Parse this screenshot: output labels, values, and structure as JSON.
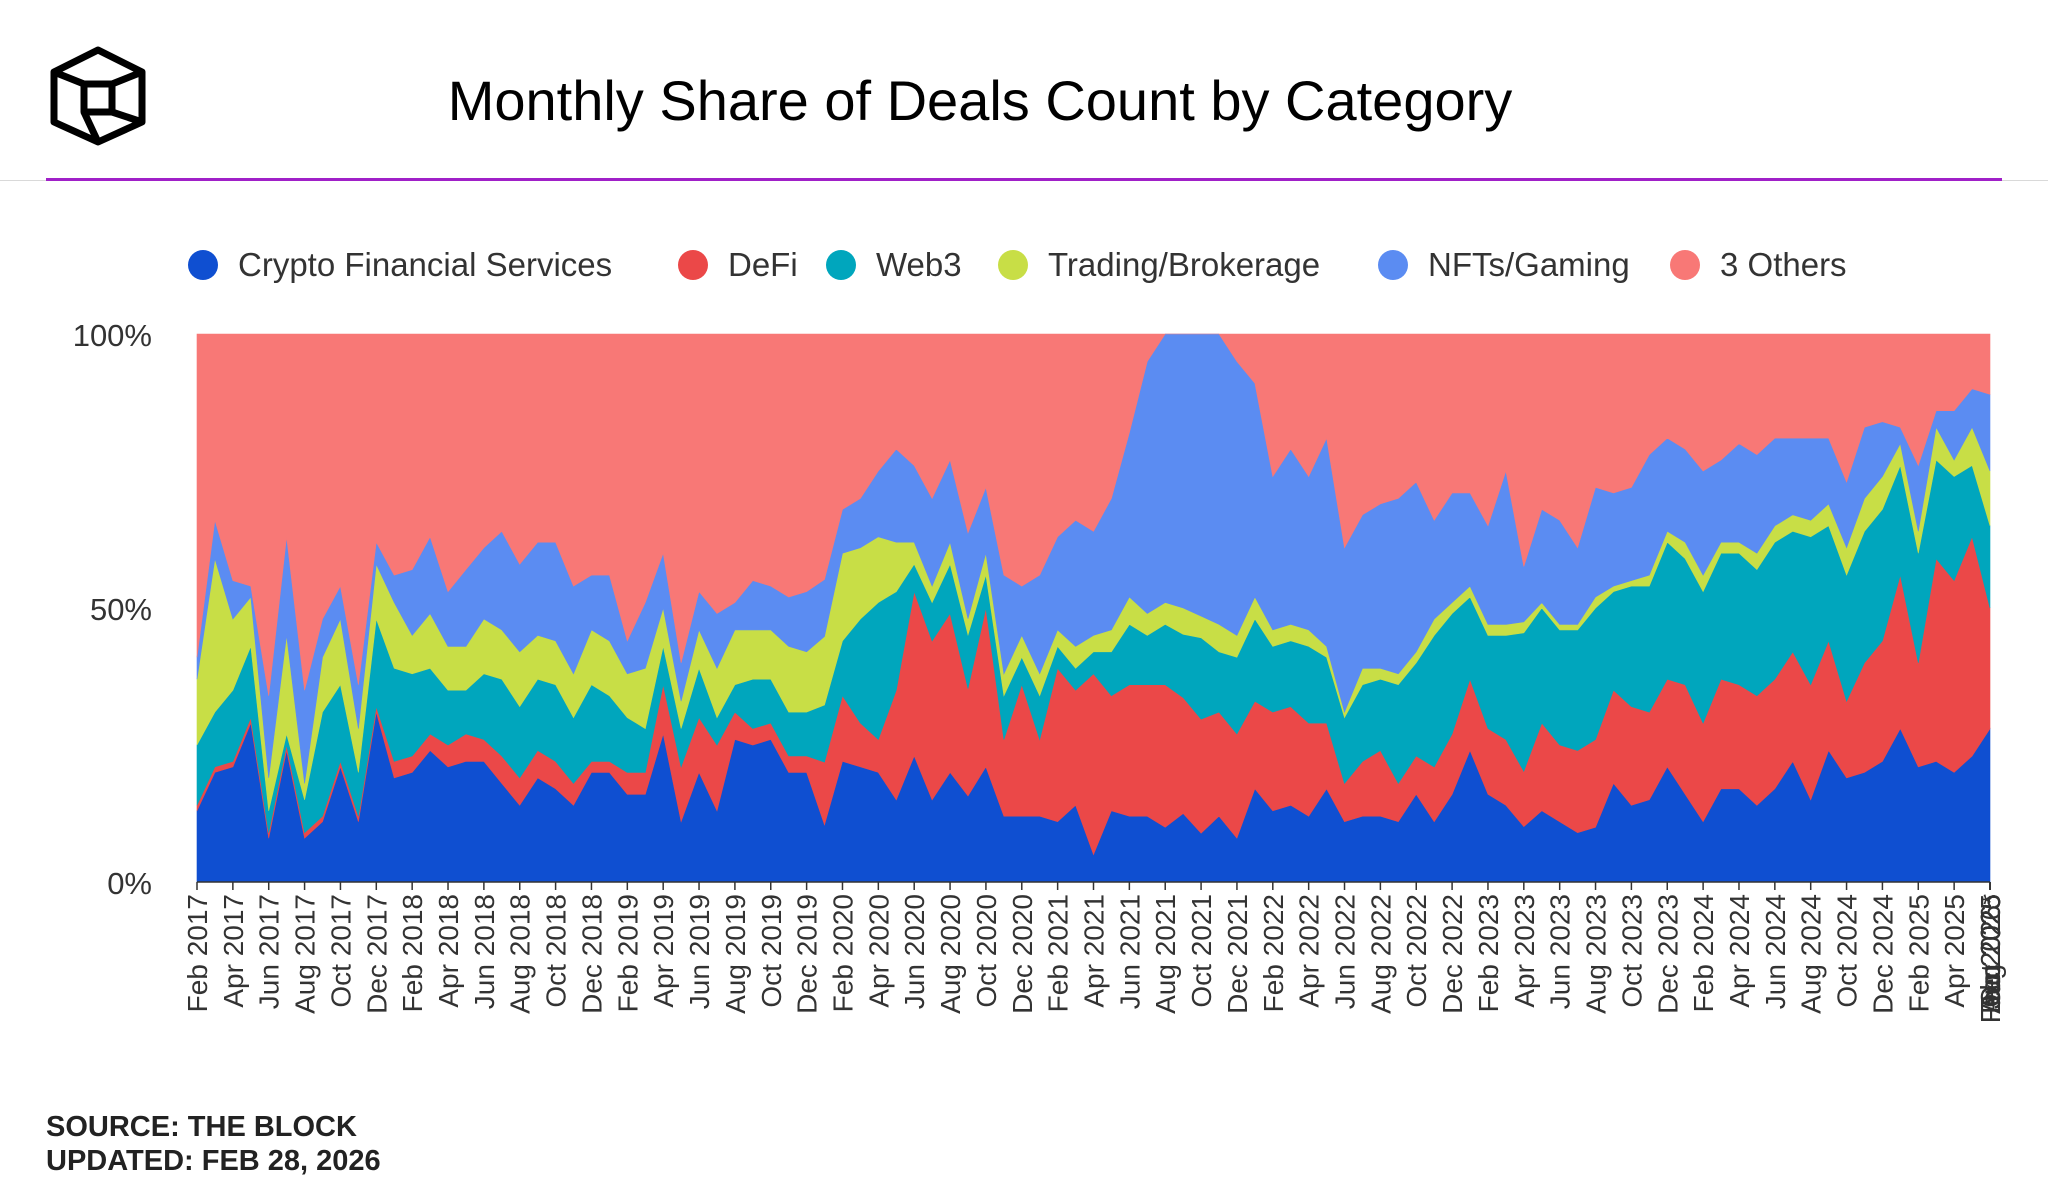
{
  "header": {
    "title": "Monthly Share of Deals Count by Category",
    "logo_icon": "cube-logo-icon",
    "accent_color": "#a020c8"
  },
  "footer": {
    "source": "SOURCE: THE BLOCK",
    "updated": "UPDATED: FEB 28, 2026"
  },
  "chart_data": {
    "type": "area",
    "stacked": true,
    "normalized": true,
    "title": "Monthly Share of Deals Count by Category",
    "xlabel": "",
    "ylabel": "",
    "ylim": [
      0,
      100
    ],
    "y_ticks": [
      "0%",
      "50%",
      "100%"
    ],
    "y_tick_values": [
      0,
      50,
      100
    ],
    "legend_position": "top",
    "x_tick_labels": [
      "Feb 2017",
      "Apr 2017",
      "Jun 2017",
      "Aug 2017",
      "Oct 2017",
      "Dec 2017",
      "Feb 2018",
      "Apr 2018",
      "Jun 2018",
      "Aug 2018",
      "Oct 2018",
      "Dec 2018",
      "Feb 2019",
      "Apr 2019",
      "Jun 2019",
      "Aug 2019",
      "Oct 2019",
      "Dec 2019",
      "Feb 2020",
      "Apr 2020",
      "Jun 2020",
      "Aug 2020",
      "Oct 2020",
      "Dec 2020",
      "Feb 2021",
      "Apr 2021",
      "Jun 2021",
      "Aug 2021",
      "Oct 2021",
      "Dec 2021",
      "Feb 2022",
      "Apr 2022",
      "Jun 2022",
      "Aug 2022",
      "Oct 2022",
      "Dec 2022",
      "Feb 2023",
      "Apr 2023",
      "Jun 2023",
      "Aug 2023",
      "Oct 2023",
      "Dec 2023",
      "Feb 2024",
      "Apr 2024",
      "Jun 2024",
      "Aug 2024",
      "Oct 2024",
      "Dec 2024",
      "Feb 2025",
      "Apr 2025",
      "Jun 2025",
      "Aug 2025",
      "Oct 2025",
      "Dec 2025",
      "Feb 2026*"
    ],
    "series": [
      {
        "name": "Crypto Financial Services",
        "color": "#0f4fd1",
        "values": [
          13,
          20,
          21,
          29,
          8,
          24,
          8,
          11,
          21,
          11,
          31,
          19,
          20,
          24,
          21,
          22,
          22,
          18,
          14,
          19,
          17,
          14,
          20,
          20,
          16,
          16,
          27,
          11,
          20,
          13,
          26,
          25,
          26,
          20,
          20,
          10,
          22,
          21,
          20,
          15,
          23,
          15,
          20,
          16,
          21,
          12,
          12,
          12,
          11,
          14,
          5,
          13,
          12,
          12,
          10,
          13,
          9,
          12,
          8,
          17,
          13,
          14,
          12,
          17,
          11,
          12,
          12,
          11,
          16,
          11,
          16,
          24,
          16,
          14,
          10,
          13,
          11,
          9,
          10,
          18,
          14,
          15,
          21,
          16,
          11,
          17,
          17,
          14,
          17,
          22,
          15,
          24,
          19,
          20,
          22,
          28,
          21,
          22,
          20,
          23,
          28
        ]
      },
      {
        "name": "DeFi",
        "color": "#eb4848",
        "values": [
          1,
          1,
          1,
          1,
          1,
          1,
          1,
          1,
          1,
          1,
          1,
          3,
          3,
          3,
          4,
          5,
          4,
          5,
          5,
          5,
          5,
          4,
          2,
          2,
          4,
          4,
          9,
          10,
          10,
          12,
          5,
          3,
          3,
          3,
          3,
          11,
          12,
          8,
          6,
          20,
          30,
          29,
          29,
          20,
          29,
          14,
          24,
          14,
          28,
          21,
          33,
          21,
          24,
          24,
          26,
          22,
          21,
          19,
          19,
          16,
          18,
          18,
          17,
          12,
          7,
          10,
          12,
          7,
          7,
          10,
          11,
          13,
          12,
          12,
          10,
          16,
          14,
          15,
          16,
          17,
          18,
          16,
          16,
          20,
          18,
          20,
          19,
          20,
          20,
          20,
          21,
          20,
          14,
          20,
          22,
          28,
          19,
          37,
          35,
          40,
          22
        ]
      },
      {
        "name": "Web3",
        "color": "#00a6bd",
        "values": [
          11,
          10,
          13,
          13,
          4,
          2,
          6,
          19,
          14,
          8,
          16,
          17,
          15,
          12,
          10,
          8,
          12,
          14,
          13,
          13,
          14,
          12,
          14,
          12,
          10,
          8,
          7,
          7,
          9,
          5,
          5,
          9,
          8,
          8,
          8,
          10,
          10,
          19,
          25,
          18,
          5,
          7,
          9,
          10,
          6,
          8,
          5,
          8,
          4,
          4,
          4,
          8,
          11,
          9,
          11,
          12,
          15,
          11,
          14,
          15,
          12,
          12,
          14,
          12,
          12,
          14,
          13,
          18,
          17,
          24,
          22,
          15,
          17,
          19,
          25,
          21,
          21,
          22,
          24,
          18,
          22,
          23,
          25,
          23,
          24,
          23,
          24,
          23,
          25,
          22,
          27,
          21,
          23,
          24,
          24,
          20,
          20,
          18,
          19,
          13,
          15
        ]
      },
      {
        "name": "Trading/Brokerage",
        "color": "#c8de46",
        "values": [
          12,
          28,
          13,
          9,
          6,
          18,
          3,
          10,
          12,
          8,
          10,
          12,
          7,
          10,
          8,
          8,
          10,
          9,
          10,
          8,
          8,
          8,
          10,
          10,
          8,
          11,
          7,
          5,
          7,
          9,
          10,
          9,
          9,
          12,
          11,
          12,
          16,
          13,
          12,
          9,
          4,
          3,
          4,
          3,
          4,
          4,
          4,
          4,
          3,
          4,
          3,
          4,
          5,
          4,
          4,
          5,
          4,
          5,
          4,
          4,
          3,
          3,
          3,
          2,
          1,
          3,
          2,
          2,
          2,
          3,
          2,
          2,
          2,
          2,
          2,
          1,
          1,
          1,
          2,
          1,
          1,
          2,
          2,
          3,
          3,
          2,
          2,
          3,
          3,
          3,
          3,
          4,
          5,
          6,
          6,
          4,
          4,
          6,
          3,
          7,
          10
        ]
      },
      {
        "name": "NFTs/Gaming",
        "color": "#5b8cf2",
        "values": [
          4,
          7,
          7,
          2,
          15,
          18,
          17,
          7,
          6,
          8,
          4,
          5,
          12,
          14,
          10,
          14,
          13,
          18,
          16,
          17,
          18,
          16,
          10,
          12,
          6,
          12,
          10,
          7,
          7,
          10,
          5,
          9,
          8,
          9,
          11,
          10,
          8,
          9,
          12,
          17,
          14,
          16,
          15,
          16,
          12,
          18,
          9,
          18,
          17,
          23,
          19,
          24,
          30,
          46,
          49,
          52,
          52,
          53,
          50,
          39,
          28,
          32,
          28,
          38,
          30,
          28,
          30,
          32,
          31,
          18,
          20,
          17,
          18,
          28,
          10,
          17,
          19,
          14,
          20,
          17,
          17,
          22,
          17,
          17,
          19,
          15,
          18,
          18,
          16,
          14,
          15,
          12,
          12,
          13,
          10,
          3,
          12,
          3,
          9,
          7,
          14
        ]
      },
      {
        "name": "3 Others",
        "color": "#f87876",
        "values": [
          59,
          34,
          45,
          46,
          66,
          37,
          65,
          52,
          46,
          64,
          38,
          44,
          43,
          37,
          47,
          43,
          39,
          36,
          42,
          38,
          38,
          46,
          44,
          44,
          56,
          49,
          40,
          60,
          47,
          51,
          49,
          45,
          46,
          48,
          47,
          43,
          32,
          30,
          25,
          21,
          24,
          30,
          23,
          37,
          28,
          44,
          46,
          44,
          37,
          34,
          36,
          30,
          18,
          5,
          0,
          0,
          0,
          0,
          5,
          9,
          26,
          21,
          26,
          19,
          39,
          33,
          31,
          30,
          27,
          34,
          29,
          29,
          35,
          25,
          42,
          32,
          34,
          39,
          28,
          29,
          28,
          22,
          19,
          21,
          25,
          23,
          20,
          22,
          19,
          19,
          19,
          19,
          27,
          17,
          16,
          17,
          24,
          14,
          14,
          10,
          11
        ]
      }
    ]
  }
}
